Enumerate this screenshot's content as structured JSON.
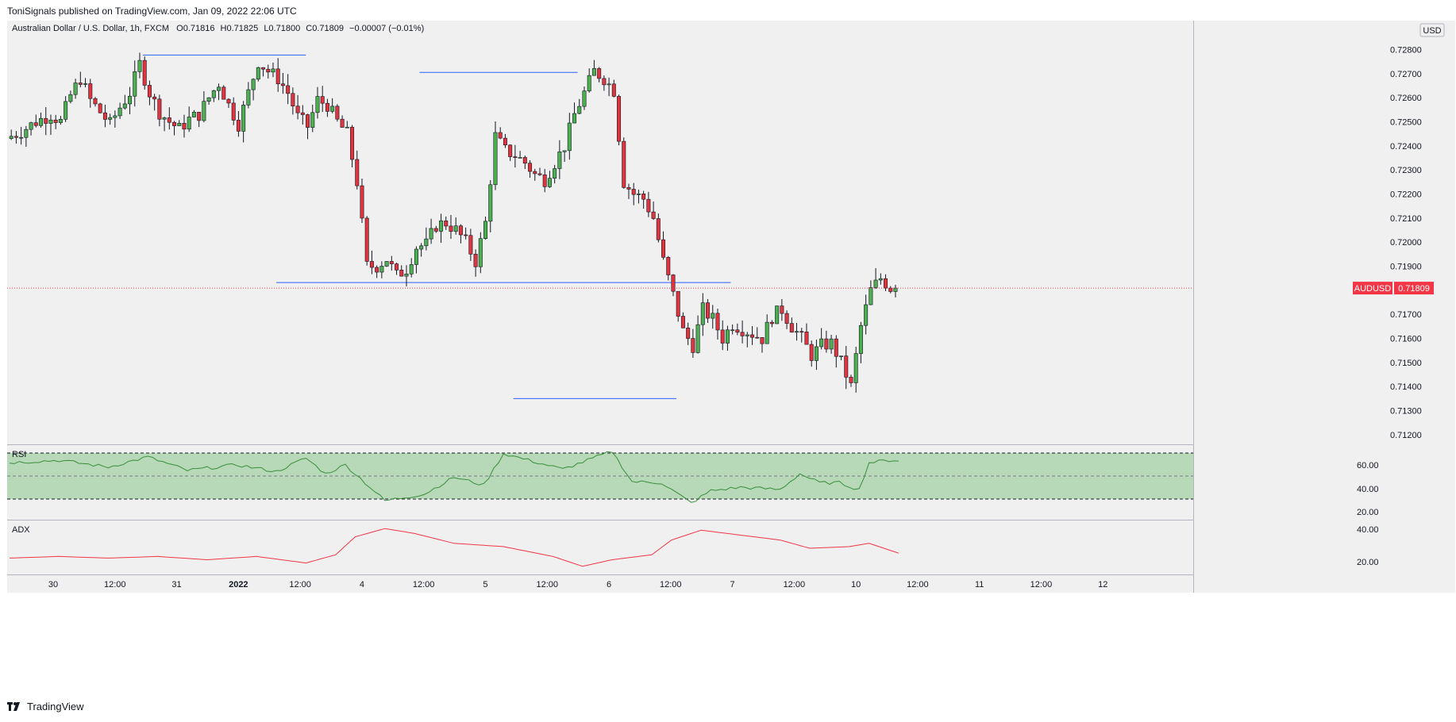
{
  "header": {
    "published": "ToniSignals published on TradingView.com, Jan 09, 2022 22:06 UTC"
  },
  "legend": {
    "symbol": "Australian Dollar / U.S. Dollar, 1h, FXCM",
    "open": "O0.71816",
    "high": "H0.71825",
    "low": "L0.71800",
    "close": "C0.71809",
    "change": "−0.00007 (−0.01%)"
  },
  "currency_button": "USD",
  "price_badge": {
    "symbol": "AUDUSD",
    "price": "0.71809"
  },
  "colors": {
    "up": "#26a69a",
    "up_fill": "#4caf50",
    "down": "#ef5350",
    "down_fill": "#e0343f",
    "level_line": "#2962ff",
    "rsi_line": "#388e3c",
    "rsi_band": "#b7d9b7",
    "adx_line": "#f23645",
    "badge": "#f23645",
    "background": "#f0f0f0"
  },
  "main_axis": {
    "ticks": [
      "0.72800",
      "0.72700",
      "0.72600",
      "0.72500",
      "0.72400",
      "0.72300",
      "0.72200",
      "0.72100",
      "0.72000",
      "0.71900",
      "0.71700",
      "0.71600",
      "0.71500",
      "0.71400",
      "0.71300",
      "0.71200"
    ]
  },
  "time_axis": {
    "ticks": [
      "30",
      "12:00",
      "31",
      "2022",
      "12:00",
      "4",
      "12:00",
      "5",
      "12:00",
      "6",
      "12:00",
      "7",
      "12:00",
      "10",
      "12:00",
      "11",
      "12:00",
      "12"
    ]
  },
  "rsi": {
    "label": "RSI",
    "ticks": [
      "60.00",
      "40.00",
      "20.00"
    ]
  },
  "adx": {
    "label": "ADX",
    "ticks": [
      "40.00",
      "20.00"
    ]
  },
  "footer": {
    "logo_icon": "tradingview-logo-icon",
    "brand": "TradingView"
  },
  "chart_data": {
    "type": "candlestick",
    "symbol": "AUDUSD",
    "interval": "1h",
    "ylim": [
      0.7116,
      0.7292
    ],
    "last_price": 0.71809,
    "horizontal_levels": [
      0.72777,
      0.72705,
      0.71832,
      0.7135
    ],
    "price_path": [
      [
        0,
        0.7243
      ],
      [
        3,
        0.7246
      ],
      [
        6,
        0.725
      ],
      [
        9,
        0.7253
      ],
      [
        11,
        0.725
      ],
      [
        13,
        0.7261
      ],
      [
        15,
        0.7268
      ],
      [
        17,
        0.7259
      ],
      [
        19,
        0.7254
      ],
      [
        21,
        0.7249
      ],
      [
        23,
        0.7256
      ],
      [
        25,
        0.7262
      ],
      [
        27,
        0.7274
      ],
      [
        29,
        0.7262
      ],
      [
        31,
        0.7254
      ],
      [
        33,
        0.725
      ],
      [
        35,
        0.7247
      ],
      [
        37,
        0.7251
      ],
      [
        39,
        0.7253
      ],
      [
        41,
        0.726
      ],
      [
        43,
        0.7266
      ],
      [
        45,
        0.7257
      ],
      [
        47,
        0.7249
      ],
      [
        49,
        0.7262
      ],
      [
        51,
        0.7275
      ],
      [
        53,
        0.7271
      ],
      [
        55,
        0.7268
      ],
      [
        57,
        0.7262
      ],
      [
        59,
        0.7252
      ],
      [
        61,
        0.7248
      ],
      [
        63,
        0.7259
      ],
      [
        65,
        0.7257
      ],
      [
        67,
        0.725
      ],
      [
        69,
        0.7245
      ],
      [
        71,
        0.7225
      ],
      [
        73,
        0.719
      ],
      [
        75,
        0.719
      ],
      [
        77,
        0.7193
      ],
      [
        79,
        0.7186
      ],
      [
        81,
        0.7189
      ],
      [
        83,
        0.7198
      ],
      [
        85,
        0.7199
      ],
      [
        87,
        0.7207
      ],
      [
        89,
        0.7208
      ],
      [
        91,
        0.7205
      ],
      [
        93,
        0.72
      ],
      [
        95,
        0.7192
      ],
      [
        97,
        0.7208
      ],
      [
        99,
        0.7244
      ],
      [
        101,
        0.7238
      ],
      [
        103,
        0.7236
      ],
      [
        105,
        0.7233
      ],
      [
        107,
        0.7228
      ],
      [
        109,
        0.7226
      ],
      [
        111,
        0.7233
      ],
      [
        113,
        0.724
      ],
      [
        115,
        0.7253
      ],
      [
        117,
        0.7262
      ],
      [
        119,
        0.7271
      ],
      [
        121,
        0.7268
      ],
      [
        123,
        0.7263
      ],
      [
        125,
        0.7225
      ],
      [
        127,
        0.722
      ],
      [
        129,
        0.7218
      ],
      [
        131,
        0.721
      ],
      [
        133,
        0.7192
      ],
      [
        135,
        0.7178
      ],
      [
        137,
        0.7163
      ],
      [
        139,
        0.7157
      ],
      [
        141,
        0.7172
      ],
      [
        143,
        0.7168
      ],
      [
        145,
        0.716
      ],
      [
        147,
        0.7166
      ],
      [
        149,
        0.7164
      ],
      [
        151,
        0.7162
      ],
      [
        153,
        0.716
      ],
      [
        155,
        0.7169
      ],
      [
        157,
        0.7172
      ],
      [
        159,
        0.7165
      ],
      [
        161,
        0.716
      ],
      [
        163,
        0.7153
      ],
      [
        165,
        0.7157
      ],
      [
        167,
        0.7158
      ],
      [
        169,
        0.715
      ],
      [
        171,
        0.714
      ],
      [
        173,
        0.7165
      ],
      [
        175,
        0.718
      ],
      [
        177,
        0.7185
      ],
      [
        179,
        0.7181
      ]
    ],
    "rsi": [
      [
        0,
        58
      ],
      [
        10,
        60
      ],
      [
        20,
        54
      ],
      [
        28,
        63
      ],
      [
        36,
        51
      ],
      [
        46,
        56
      ],
      [
        54,
        50
      ],
      [
        60,
        62
      ],
      [
        64,
        48
      ],
      [
        68,
        56
      ],
      [
        72,
        40
      ],
      [
        76,
        24
      ],
      [
        84,
        30
      ],
      [
        90,
        45
      ],
      [
        96,
        38
      ],
      [
        100,
        66
      ],
      [
        112,
        52
      ],
      [
        122,
        68
      ],
      [
        126,
        41
      ],
      [
        132,
        40
      ],
      [
        138,
        22
      ],
      [
        142,
        33
      ],
      [
        148,
        36
      ],
      [
        156,
        34
      ],
      [
        160,
        48
      ],
      [
        164,
        40
      ],
      [
        168,
        40
      ],
      [
        172,
        34
      ],
      [
        174,
        58
      ],
      [
        178,
        60
      ]
    ],
    "adx": [
      [
        0,
        24
      ],
      [
        10,
        25
      ],
      [
        20,
        24
      ],
      [
        30,
        25
      ],
      [
        40,
        23
      ],
      [
        50,
        25
      ],
      [
        60,
        21
      ],
      [
        66,
        26
      ],
      [
        70,
        37
      ],
      [
        76,
        42
      ],
      [
        82,
        39
      ],
      [
        90,
        33
      ],
      [
        100,
        31
      ],
      [
        110,
        25
      ],
      [
        116,
        19
      ],
      [
        122,
        23
      ],
      [
        130,
        26
      ],
      [
        134,
        35
      ],
      [
        140,
        41
      ],
      [
        148,
        38
      ],
      [
        156,
        35
      ],
      [
        162,
        30
      ],
      [
        170,
        31
      ],
      [
        174,
        33
      ],
      [
        180,
        27
      ]
    ],
    "rsi_ylim": [
      10,
      70
    ],
    "adx_ylim": [
      15,
      45
    ]
  }
}
